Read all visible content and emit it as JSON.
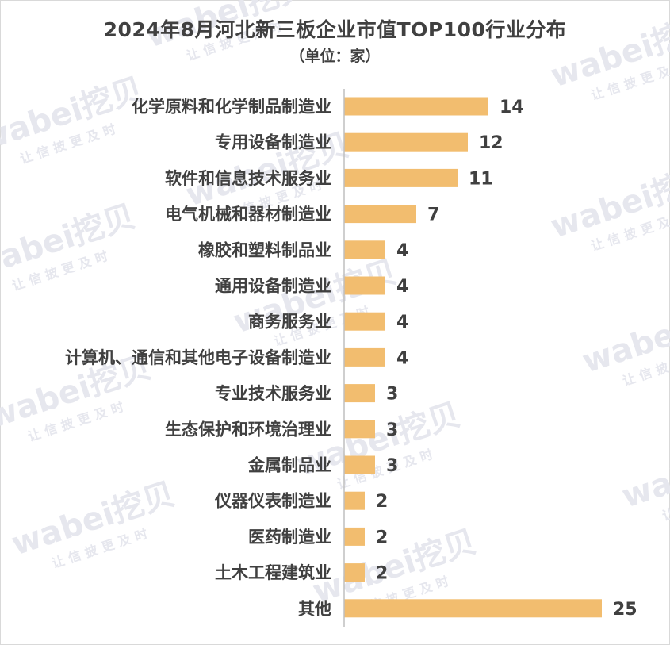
{
  "chart_data": {
    "type": "bar",
    "orientation": "horizontal",
    "title": "2024年8月河北新三板企业市值TOP100行业分布",
    "subtitle": "（单位：家）",
    "categories": [
      "化学原料和化学制品制造业",
      "专用设备制造业",
      "软件和信息技术服务业",
      "电气机械和器材制造业",
      "橡胶和塑料制品业",
      "通用设备制造业",
      "商务服务业",
      "计算机、通信和其他电子设备制造业",
      "专业技术服务业",
      "生态保护和环境治理业",
      "金属制品业",
      "仪器仪表制造业",
      "医药制造业",
      "土木工程建筑业",
      "其他"
    ],
    "values": [
      14,
      12,
      11,
      7,
      4,
      4,
      4,
      4,
      3,
      3,
      3,
      2,
      2,
      2,
      25
    ],
    "xlim": [
      0,
      25
    ],
    "bar_color": "#f2bd6f",
    "grid": false,
    "legend": "none"
  },
  "watermark": {
    "brand": "wabei挖贝",
    "slogan": "让信披更及时",
    "color": "#e6e7ee"
  }
}
